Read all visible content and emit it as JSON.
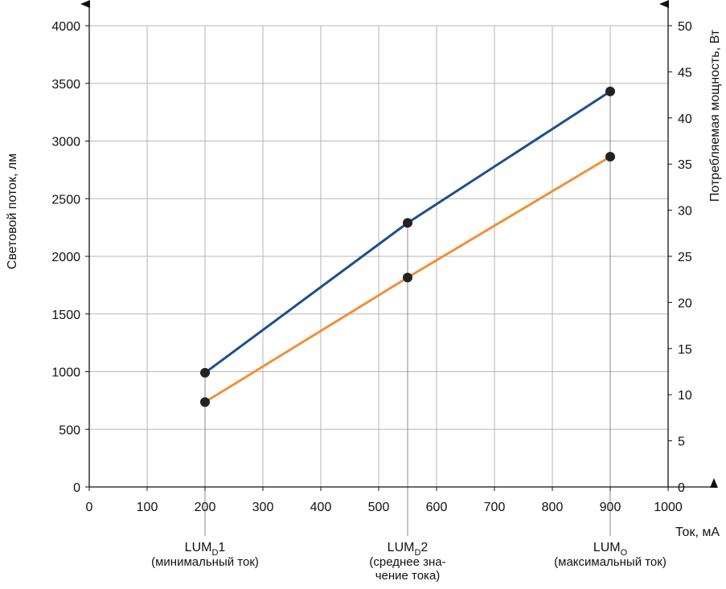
{
  "chart_data": {
    "type": "line",
    "x": [
      200,
      550,
      900
    ],
    "xlim": [
      0,
      1000
    ],
    "x_ticks": [
      0,
      100,
      200,
      300,
      400,
      500,
      600,
      700,
      800,
      900,
      1000
    ],
    "xlabel": "Ток, мА",
    "ylabel_left": "Световой поток, лм",
    "ylim_left": [
      0,
      4000
    ],
    "y_ticks_left": [
      0,
      500,
      1000,
      1500,
      2000,
      2500,
      3000,
      3500,
      4000
    ],
    "ylabel_right": "Потребляемая мощность, Вт",
    "ylim_right": [
      0,
      50
    ],
    "y_ticks_right": [
      0,
      5,
      10,
      15,
      20,
      25,
      30,
      35,
      40,
      45,
      50
    ],
    "grid": true,
    "series": [
      {
        "name": "Световой поток",
        "axis": "left",
        "color": "#1f4e8c",
        "values": [
          990,
          2290,
          3430
        ]
      },
      {
        "name": "Потребляемая мощность",
        "axis": "right",
        "color": "#f0903a",
        "values": [
          9.2,
          22.7,
          35.8
        ]
      }
    ],
    "marker_color": "#222222",
    "category_labels": [
      {
        "x": 200,
        "main": "LUM",
        "sub": "D",
        "suffix": "1",
        "desc": [
          "(минимальный ток)"
        ]
      },
      {
        "x": 550,
        "main": "LUM",
        "sub": "D",
        "suffix": "2",
        "desc": [
          "(среднее зна-",
          "чение тока)"
        ]
      },
      {
        "x": 900,
        "main": "LUM",
        "sub": "O",
        "suffix": "",
        "desc": [
          "(максимальный ток)"
        ]
      }
    ]
  }
}
